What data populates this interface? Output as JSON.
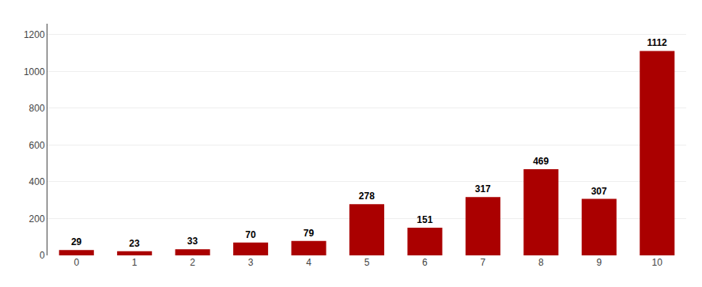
{
  "chart_data": {
    "type": "bar",
    "categories": [
      0,
      1,
      2,
      3,
      4,
      5,
      6,
      7,
      8,
      9,
      10
    ],
    "values": [
      29,
      23,
      33,
      70,
      79,
      278,
      151,
      317,
      469,
      307,
      1112
    ],
    "color": "#aa0000",
    "ylim": [
      0,
      1260
    ],
    "yticks": [
      0,
      200,
      400,
      600,
      800,
      1000,
      1200
    ],
    "grid": true,
    "data_labels": true
  }
}
